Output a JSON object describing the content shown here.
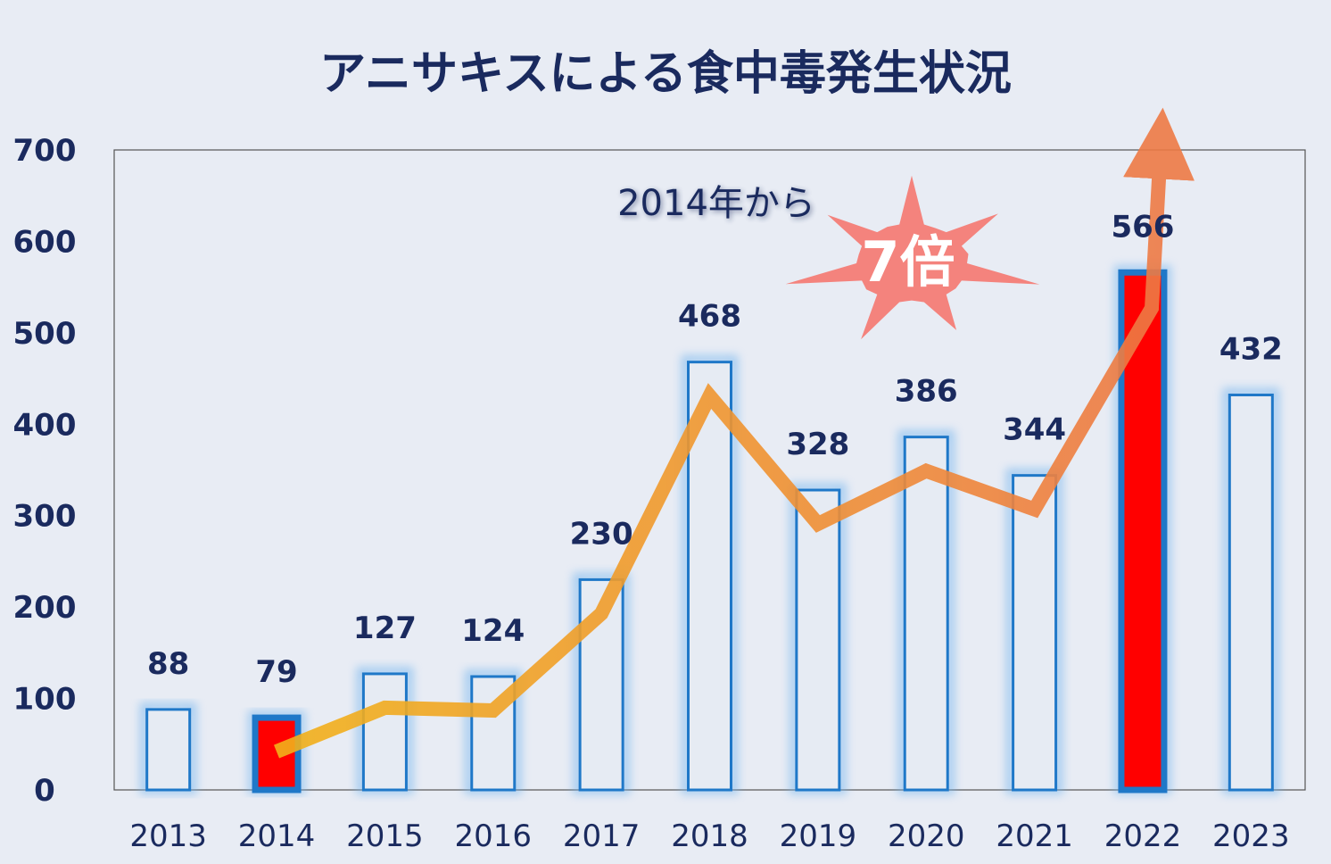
{
  "chart_data": {
    "type": "bar",
    "title": "アニサキスによる食中毒発生状況",
    "categories": [
      "2013",
      "2014",
      "2015",
      "2016",
      "2017",
      "2018",
      "2019",
      "2020",
      "2021",
      "2022",
      "2023"
    ],
    "values": [
      88,
      79,
      127,
      124,
      230,
      468,
      328,
      386,
      344,
      566,
      432
    ],
    "highlighted": [
      "2014",
      "2022"
    ],
    "ylim": [
      0,
      700
    ],
    "yticks": [
      0,
      100,
      200,
      300,
      400,
      500,
      600,
      700
    ],
    "xlabel": "",
    "ylabel": "",
    "grid": false,
    "trend_line_from": "2014",
    "annotation": {
      "text": "2014年から",
      "burst_text": "7倍"
    },
    "colors": {
      "bar_outline": "#1f78c8",
      "bar_fill": "#e6ebf3",
      "highlight_fill": "#ff0000",
      "text": "#1a2a5e",
      "trend_start": "#f2b21b",
      "trend_end": "#ee7a45",
      "burst": "#f47a72"
    }
  }
}
